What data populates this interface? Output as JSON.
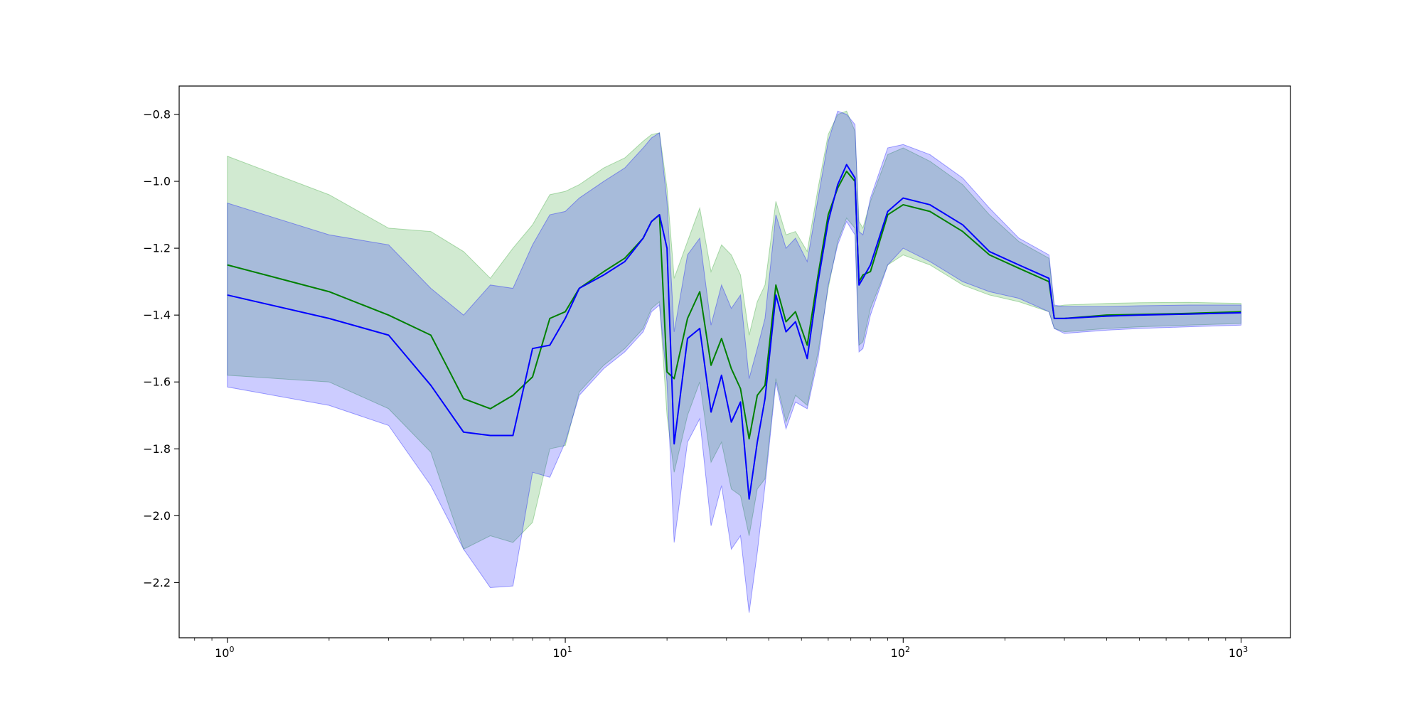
{
  "chart_data": {
    "type": "line",
    "title": "",
    "xlabel": "",
    "ylabel": "",
    "xscale": "log",
    "xlim": [
      0.72,
      1400
    ],
    "ylim": [
      -2.365,
      -0.715
    ],
    "grid": false,
    "legend": "none",
    "x_ticks": [
      {
        "value": 1,
        "base": "10",
        "exp": "0"
      },
      {
        "value": 10,
        "base": "10",
        "exp": "1"
      },
      {
        "value": 100,
        "base": "10",
        "exp": "2"
      },
      {
        "value": 1000,
        "base": "10",
        "exp": "3"
      }
    ],
    "y_ticks": [
      {
        "value": -0.8,
        "label": "−0.8"
      },
      {
        "value": -1.0,
        "label": "−1.0"
      },
      {
        "value": -1.2,
        "label": "−1.2"
      },
      {
        "value": -1.4,
        "label": "−1.4"
      },
      {
        "value": -1.6,
        "label": "−1.6"
      },
      {
        "value": -1.8,
        "label": "−1.8"
      },
      {
        "value": -2.0,
        "label": "−2.0"
      },
      {
        "value": -2.2,
        "label": "−2.2"
      }
    ],
    "series": [
      {
        "color": "#008000",
        "band_color": "#2ca02c",
        "band_opacity": 0.22,
        "x": [
          1,
          2,
          3,
          4,
          5,
          6,
          7,
          8,
          9,
          10,
          11,
          13,
          15,
          17,
          18,
          19,
          20,
          21,
          23,
          25,
          27,
          29,
          31,
          33,
          35,
          37,
          39,
          42,
          45,
          48,
          52,
          56,
          60,
          64,
          68,
          72,
          74,
          76,
          80,
          90,
          100,
          120,
          150,
          180,
          220,
          270,
          280,
          300,
          400,
          500,
          700,
          1000
        ],
        "y": [
          -1.25,
          -1.33,
          -1.4,
          -1.46,
          -1.65,
          -1.68,
          -1.64,
          -1.585,
          -1.41,
          -1.39,
          -1.32,
          -1.27,
          -1.23,
          -1.17,
          -1.12,
          -1.1,
          -1.57,
          -1.59,
          -1.41,
          -1.33,
          -1.55,
          -1.47,
          -1.56,
          -1.62,
          -1.77,
          -1.64,
          -1.61,
          -1.31,
          -1.42,
          -1.39,
          -1.49,
          -1.28,
          -1.1,
          -1.02,
          -0.97,
          -1.0,
          -1.3,
          -1.28,
          -1.27,
          -1.1,
          -1.07,
          -1.09,
          -1.15,
          -1.22,
          -1.26,
          -1.3,
          -1.41,
          -1.41,
          -1.4,
          -1.398,
          -1.395,
          -1.39
        ],
        "upper": [
          -0.925,
          -1.04,
          -1.14,
          -1.15,
          -1.21,
          -1.29,
          -1.2,
          -1.13,
          -1.04,
          -1.03,
          -1.01,
          -0.96,
          -0.93,
          -0.88,
          -0.86,
          -0.855,
          -1.02,
          -1.29,
          -1.18,
          -1.08,
          -1.27,
          -1.19,
          -1.22,
          -1.28,
          -1.46,
          -1.36,
          -1.31,
          -1.06,
          -1.16,
          -1.15,
          -1.21,
          -1.02,
          -0.86,
          -0.8,
          -0.79,
          -0.85,
          -1.12,
          -1.14,
          -1.06,
          -0.92,
          -0.9,
          -0.94,
          -1.01,
          -1.1,
          -1.18,
          -1.23,
          -1.375,
          -1.37,
          -1.365,
          -1.363,
          -1.362,
          -1.365
        ],
        "lower": [
          -1.58,
          -1.6,
          -1.68,
          -1.81,
          -2.1,
          -2.06,
          -2.08,
          -2.02,
          -1.8,
          -1.79,
          -1.63,
          -1.55,
          -1.5,
          -1.44,
          -1.38,
          -1.36,
          -1.7,
          -1.87,
          -1.7,
          -1.6,
          -1.84,
          -1.78,
          -1.92,
          -1.94,
          -2.06,
          -1.92,
          -1.89,
          -1.59,
          -1.72,
          -1.64,
          -1.67,
          -1.51,
          -1.32,
          -1.18,
          -1.11,
          -1.14,
          -1.49,
          -1.48,
          -1.38,
          -1.25,
          -1.22,
          -1.25,
          -1.31,
          -1.34,
          -1.36,
          -1.39,
          -1.44,
          -1.45,
          -1.44,
          -1.435,
          -1.43,
          -1.425
        ]
      },
      {
        "color": "#0000ff",
        "band_color": "#0000ff",
        "band_opacity": 0.2,
        "x": [
          1,
          2,
          3,
          4,
          5,
          6,
          7,
          8,
          9,
          10,
          11,
          13,
          15,
          17,
          18,
          19,
          20,
          21,
          23,
          25,
          27,
          29,
          31,
          33,
          35,
          37,
          39,
          42,
          45,
          48,
          52,
          56,
          60,
          64,
          68,
          72,
          74,
          76,
          80,
          90,
          100,
          120,
          150,
          180,
          220,
          270,
          280,
          300,
          400,
          500,
          700,
          1000
        ],
        "y": [
          -1.34,
          -1.41,
          -1.46,
          -1.61,
          -1.75,
          -1.76,
          -1.76,
          -1.5,
          -1.49,
          -1.41,
          -1.32,
          -1.28,
          -1.24,
          -1.17,
          -1.12,
          -1.1,
          -1.2,
          -1.785,
          -1.47,
          -1.44,
          -1.69,
          -1.58,
          -1.72,
          -1.66,
          -1.95,
          -1.78,
          -1.65,
          -1.34,
          -1.45,
          -1.42,
          -1.53,
          -1.3,
          -1.12,
          -1.01,
          -0.95,
          -0.99,
          -1.31,
          -1.29,
          -1.25,
          -1.09,
          -1.05,
          -1.07,
          -1.13,
          -1.21,
          -1.25,
          -1.29,
          -1.41,
          -1.41,
          -1.403,
          -1.4,
          -1.397,
          -1.393
        ],
        "upper": [
          -1.065,
          -1.16,
          -1.19,
          -1.32,
          -1.4,
          -1.31,
          -1.32,
          -1.19,
          -1.1,
          -1.09,
          -1.05,
          -1.0,
          -0.96,
          -0.9,
          -0.87,
          -0.855,
          -1.06,
          -1.45,
          -1.22,
          -1.17,
          -1.43,
          -1.31,
          -1.38,
          -1.34,
          -1.59,
          -1.5,
          -1.41,
          -1.1,
          -1.2,
          -1.17,
          -1.24,
          -1.05,
          -0.88,
          -0.79,
          -0.8,
          -0.83,
          -1.15,
          -1.16,
          -1.05,
          -0.9,
          -0.89,
          -0.92,
          -0.99,
          -1.08,
          -1.17,
          -1.22,
          -1.37,
          -1.375,
          -1.375,
          -1.372,
          -1.37,
          -1.37
        ],
        "lower": [
          -1.615,
          -1.67,
          -1.73,
          -1.91,
          -2.1,
          -2.215,
          -2.21,
          -1.87,
          -1.885,
          -1.78,
          -1.64,
          -1.56,
          -1.51,
          -1.45,
          -1.39,
          -1.37,
          -1.6,
          -2.08,
          -1.78,
          -1.71,
          -2.03,
          -1.91,
          -2.1,
          -2.06,
          -2.29,
          -2.11,
          -1.91,
          -1.6,
          -1.74,
          -1.66,
          -1.68,
          -1.53,
          -1.31,
          -1.19,
          -1.12,
          -1.16,
          -1.51,
          -1.5,
          -1.4,
          -1.25,
          -1.2,
          -1.24,
          -1.3,
          -1.33,
          -1.35,
          -1.39,
          -1.44,
          -1.455,
          -1.445,
          -1.44,
          -1.435,
          -1.43
        ]
      }
    ]
  }
}
